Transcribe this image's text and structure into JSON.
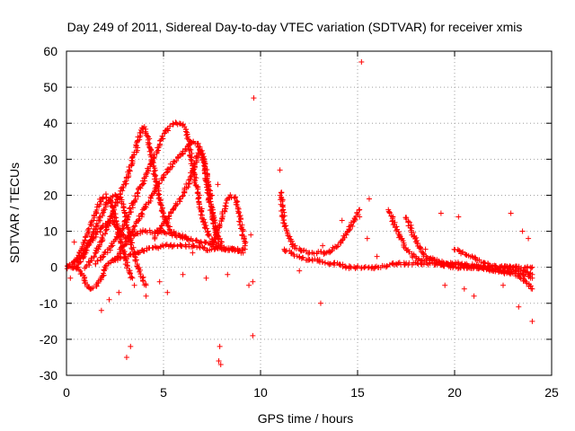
{
  "chart_data": {
    "type": "scatter",
    "title": "Day 249 of 2011, Sidereal Day-to-day VTEC variation (SDTVAR) for receiver xmis",
    "xlabel": "GPS time / hours",
    "ylabel": "SDTVAR / TECUs",
    "xlim": [
      0,
      25
    ],
    "ylim": [
      -30,
      60
    ],
    "xticks": [
      0,
      5,
      10,
      15,
      20,
      25
    ],
    "yticks": [
      -30,
      -20,
      -10,
      0,
      10,
      20,
      30,
      40,
      50,
      60
    ],
    "grid": true,
    "marker": "+",
    "marker_color": "#ff0000",
    "series": [
      {
        "name": "SDTVAR",
        "tracks": [
          {
            "points": [
              [
                0.0,
                0
              ],
              [
                0.4,
                0
              ],
              [
                0.8,
                -2
              ],
              [
                1.0,
                -5
              ],
              [
                1.3,
                -6
              ],
              [
                1.6,
                -5
              ],
              [
                1.8,
                -3
              ],
              [
                2.0,
                0
              ],
              [
                2.4,
                2
              ],
              [
                3.0,
                3
              ],
              [
                3.6,
                4
              ],
              [
                4.2,
                5
              ],
              [
                5.0,
                6
              ],
              [
                5.8,
                6
              ],
              [
                6.5,
                6
              ],
              [
                7.2,
                5
              ],
              [
                8.0,
                5
              ],
              [
                8.6,
                5
              ],
              [
                9.1,
                4
              ]
            ]
          },
          {
            "points": [
              [
                0.0,
                0
              ],
              [
                0.5,
                2
              ],
              [
                1.0,
                5
              ],
              [
                1.5,
                9
              ],
              [
                2.0,
                12
              ],
              [
                2.3,
                13
              ],
              [
                2.6,
                11
              ],
              [
                3.0,
                8
              ],
              [
                3.5,
                9
              ],
              [
                4.0,
                10
              ],
              [
                4.5,
                10
              ],
              [
                5.0,
                10
              ],
              [
                5.5,
                9
              ],
              [
                6.2,
                8
              ],
              [
                7.0,
                7
              ],
              [
                7.6,
                6
              ],
              [
                8.2,
                5
              ],
              [
                8.8,
                5
              ],
              [
                9.2,
                5
              ]
            ]
          },
          {
            "points": [
              [
                0.3,
                0
              ],
              [
                0.8,
                5
              ],
              [
                1.2,
                11
              ],
              [
                1.5,
                15
              ],
              [
                1.8,
                19
              ],
              [
                2.0,
                20
              ],
              [
                2.3,
                18
              ],
              [
                2.6,
                12
              ],
              [
                2.9,
                5
              ],
              [
                3.2,
                -1
              ],
              [
                3.4,
                -3
              ]
            ]
          },
          {
            "points": [
              [
                0.6,
                0
              ],
              [
                1.1,
                6
              ],
              [
                1.6,
                12
              ],
              [
                2.1,
                18
              ],
              [
                2.5,
                20
              ],
              [
                2.8,
                19
              ],
              [
                3.0,
                15
              ],
              [
                3.3,
                8
              ],
              [
                3.6,
                1
              ],
              [
                3.9,
                -3
              ],
              [
                4.1,
                -5
              ]
            ]
          },
          {
            "points": [
              [
                1.0,
                0
              ],
              [
                1.5,
                4
              ],
              [
                2.0,
                10
              ],
              [
                2.5,
                17
              ],
              [
                3.0,
                23
              ],
              [
                3.3,
                28
              ],
              [
                3.6,
                33
              ],
              [
                3.8,
                37
              ],
              [
                4.0,
                39
              ],
              [
                4.2,
                36
              ],
              [
                4.4,
                30
              ],
              [
                4.6,
                24
              ],
              [
                4.8,
                18
              ],
              [
                5.1,
                13
              ],
              [
                5.4,
                10
              ],
              [
                5.8,
                9
              ],
              [
                6.3,
                8
              ]
            ]
          },
          {
            "points": [
              [
                1.5,
                1
              ],
              [
                2.2,
                5
              ],
              [
                2.8,
                10
              ],
              [
                3.3,
                16
              ],
              [
                3.8,
                22
              ],
              [
                4.3,
                28
              ],
              [
                4.7,
                33
              ],
              [
                5.0,
                37
              ],
              [
                5.3,
                39
              ],
              [
                5.6,
                40
              ],
              [
                5.9,
                40
              ],
              [
                6.1,
                39
              ],
              [
                6.3,
                35
              ],
              [
                6.5,
                28
              ],
              [
                6.8,
                20
              ],
              [
                7.0,
                14
              ],
              [
                7.3,
                9
              ],
              [
                7.6,
                7
              ],
              [
                8.0,
                6
              ]
            ]
          },
          {
            "points": [
              [
                2.5,
                2
              ],
              [
                3.2,
                8
              ],
              [
                3.8,
                14
              ],
              [
                4.4,
                20
              ],
              [
                5.0,
                25
              ],
              [
                5.5,
                29
              ],
              [
                6.0,
                32
              ],
              [
                6.3,
                34
              ],
              [
                6.5,
                35
              ],
              [
                6.8,
                34
              ],
              [
                7.0,
                31
              ],
              [
                7.2,
                25
              ],
              [
                7.4,
                17
              ],
              [
                7.7,
                10
              ],
              [
                8.0,
                7
              ]
            ]
          },
          {
            "points": [
              [
                4.5,
                8
              ],
              [
                5.0,
                12
              ],
              [
                5.5,
                16
              ],
              [
                6.0,
                20
              ],
              [
                6.4,
                25
              ],
              [
                6.7,
                30
              ],
              [
                6.9,
                33
              ],
              [
                7.1,
                30
              ],
              [
                7.3,
                23
              ],
              [
                7.5,
                15
              ],
              [
                7.8,
                8
              ]
            ]
          },
          {
            "points": [
              [
                7.5,
                6
              ],
              [
                7.8,
                10
              ],
              [
                8.1,
                15
              ],
              [
                8.3,
                19
              ],
              [
                8.5,
                20
              ],
              [
                8.7,
                19
              ],
              [
                8.9,
                14
              ],
              [
                9.1,
                9
              ],
              [
                9.2,
                6
              ]
            ]
          },
          {
            "points": [
              [
                11.05,
                21
              ],
              [
                11.1,
                17
              ],
              [
                11.2,
                13
              ],
              [
                11.4,
                9
              ],
              [
                11.7,
                6
              ],
              [
                12.0,
                5
              ],
              [
                12.5,
                4
              ],
              [
                13.0,
                4
              ],
              [
                13.5,
                4
              ],
              [
                14.0,
                6
              ],
              [
                14.4,
                9
              ],
              [
                14.8,
                13
              ],
              [
                15.1,
                16
              ]
            ]
          },
          {
            "points": [
              [
                11.2,
                5
              ],
              [
                11.6,
                4
              ],
              [
                12.0,
                3
              ],
              [
                12.5,
                2
              ],
              [
                13.0,
                2
              ],
              [
                13.5,
                1
              ],
              [
                14.0,
                1
              ],
              [
                14.5,
                0
              ],
              [
                15.0,
                0
              ],
              [
                15.5,
                0
              ],
              [
                16.0,
                0
              ],
              [
                17.0,
                1
              ],
              [
                18.0,
                1
              ],
              [
                19.0,
                1
              ],
              [
                20.0,
                0
              ],
              [
                21.0,
                0
              ],
              [
                22.0,
                -1
              ],
              [
                23.0,
                -1
              ],
              [
                23.6,
                -2
              ],
              [
                24.0,
                -3
              ]
            ]
          },
          {
            "points": [
              [
                16.6,
                16
              ],
              [
                16.9,
                12
              ],
              [
                17.2,
                8
              ],
              [
                17.5,
                5
              ],
              [
                17.9,
                3
              ],
              [
                18.3,
                2
              ],
              [
                18.8,
                2
              ],
              [
                19.3,
                1
              ],
              [
                20.0,
                1
              ],
              [
                20.8,
                0
              ],
              [
                21.5,
                0
              ],
              [
                22.2,
                -1
              ],
              [
                23.0,
                -2
              ],
              [
                23.5,
                -3
              ],
              [
                24.0,
                -6
              ]
            ]
          },
          {
            "points": [
              [
                17.5,
                14
              ],
              [
                17.8,
                10
              ],
              [
                18.1,
                6
              ],
              [
                18.5,
                3
              ],
              [
                19.0,
                2
              ],
              [
                19.6,
                1
              ],
              [
                20.5,
                1
              ],
              [
                21.5,
                0
              ],
              [
                22.5,
                0
              ],
              [
                23.2,
                0
              ],
              [
                24.0,
                0
              ]
            ]
          },
          {
            "points": [
              [
                20.0,
                5
              ],
              [
                20.4,
                4
              ],
              [
                20.8,
                3
              ],
              [
                21.2,
                2
              ],
              [
                21.6,
                1
              ],
              [
                22.2,
                0
              ],
              [
                22.8,
                0
              ],
              [
                23.5,
                -1
              ],
              [
                24.0,
                -2
              ]
            ]
          }
        ],
        "outliers": [
          [
            9.65,
            47
          ],
          [
            15.2,
            57
          ],
          [
            11.0,
            27
          ],
          [
            3.1,
            -25
          ],
          [
            3.3,
            -22
          ],
          [
            7.9,
            -22
          ],
          [
            7.85,
            -26
          ],
          [
            7.95,
            -27
          ],
          [
            9.6,
            -19
          ],
          [
            1.8,
            -12
          ],
          [
            13.1,
            -10
          ],
          [
            24.0,
            -15
          ],
          [
            23.3,
            -11
          ],
          [
            22.9,
            15
          ],
          [
            19.3,
            15
          ],
          [
            20.2,
            14
          ],
          [
            15.6,
            19
          ],
          [
            15.5,
            8
          ],
          [
            13.2,
            6
          ],
          [
            9.5,
            9
          ],
          [
            9.4,
            -5
          ],
          [
            9.6,
            -4
          ],
          [
            4.1,
            -8
          ],
          [
            3.5,
            -5
          ],
          [
            2.7,
            -7
          ],
          [
            0.4,
            7
          ],
          [
            0.2,
            -3
          ],
          [
            5.2,
            -7
          ],
          [
            6.0,
            -2
          ],
          [
            6.5,
            4
          ],
          [
            7.2,
            -3
          ],
          [
            7.5,
            20
          ],
          [
            7.8,
            23
          ],
          [
            19.5,
            -5
          ],
          [
            21.0,
            -8
          ],
          [
            20.5,
            -6
          ],
          [
            22.5,
            -5
          ],
          [
            18.5,
            5
          ],
          [
            14.2,
            13
          ],
          [
            15.1,
            14
          ],
          [
            23.8,
            8
          ],
          [
            23.5,
            10
          ],
          [
            16.0,
            3
          ],
          [
            12.0,
            -1
          ],
          [
            8.3,
            -2
          ],
          [
            4.8,
            -4
          ],
          [
            2.2,
            -9
          ],
          [
            1.0,
            4
          ]
        ]
      }
    ]
  }
}
